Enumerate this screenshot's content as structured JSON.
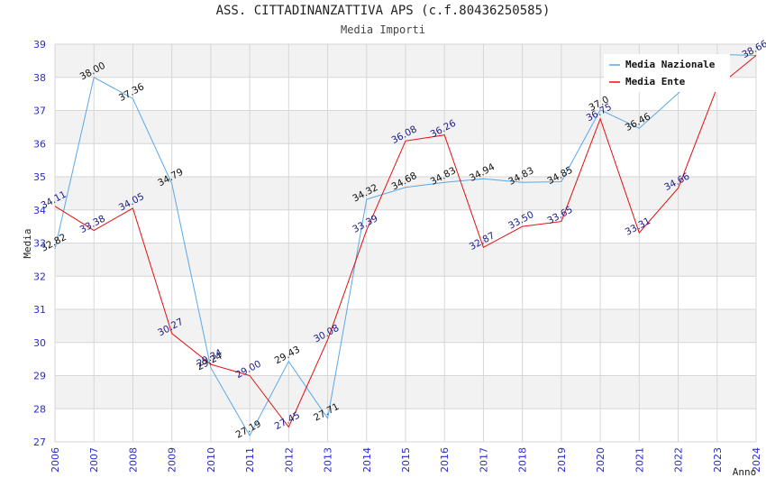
{
  "chart_data": {
    "type": "line",
    "title": "ASS. CITTADINANZATTIVA APS (c.f.80436250585)",
    "subtitle": "Media Importi",
    "xlabel": "Anno",
    "ylabel": "Media",
    "ylim": [
      27,
      39
    ],
    "yticks": [
      "27",
      "28",
      "29",
      "30",
      "31",
      "32",
      "33",
      "34",
      "35",
      "36",
      "37",
      "38",
      "39"
    ],
    "categories": [
      "2006",
      "2007",
      "2008",
      "2009",
      "2010",
      "2011",
      "2012",
      "2013",
      "2014",
      "2015",
      "2016",
      "2017",
      "2018",
      "2019",
      "2020",
      "2021",
      "2022",
      "2023",
      "2024"
    ],
    "legend_position": "top-right",
    "series": [
      {
        "name": "Media Nazionale",
        "color": "#5aa8e6",
        "label_color": "#111111",
        "values": [
          32.82,
          38.0,
          37.36,
          34.79,
          29.24,
          27.19,
          29.43,
          27.71,
          34.32,
          34.68,
          34.83,
          34.94,
          34.83,
          34.85,
          37.02,
          36.46,
          37.52,
          38.69,
          38.66
        ],
        "labels": [
          "32.82",
          "38.00",
          "37.36",
          "34.79",
          "29.24",
          "27.19",
          "29.43",
          "27.71",
          "34.32",
          "34.68",
          "34.83",
          "34.94",
          "34.83",
          "34.85",
          "37.0",
          "36.46",
          "",
          "",
          ""
        ]
      },
      {
        "name": "Media Ente",
        "color": "#e01010",
        "label_color": "#1a1a8c",
        "values": [
          34.11,
          33.38,
          34.05,
          30.27,
          29.34,
          29.0,
          27.45,
          30.08,
          33.39,
          36.08,
          36.26,
          32.87,
          33.5,
          33.65,
          36.75,
          33.31,
          34.66,
          37.7,
          38.66
        ],
        "labels": [
          "34.11",
          "33.38",
          "34.05",
          "30.27",
          "29.34",
          "29.00",
          "27.45",
          "30.08",
          "33.39",
          "36.08",
          "36.26",
          "32.87",
          "33.50",
          "33.65",
          "36.75",
          "33.31",
          "34.66",
          "",
          "38.66"
        ]
      }
    ]
  }
}
